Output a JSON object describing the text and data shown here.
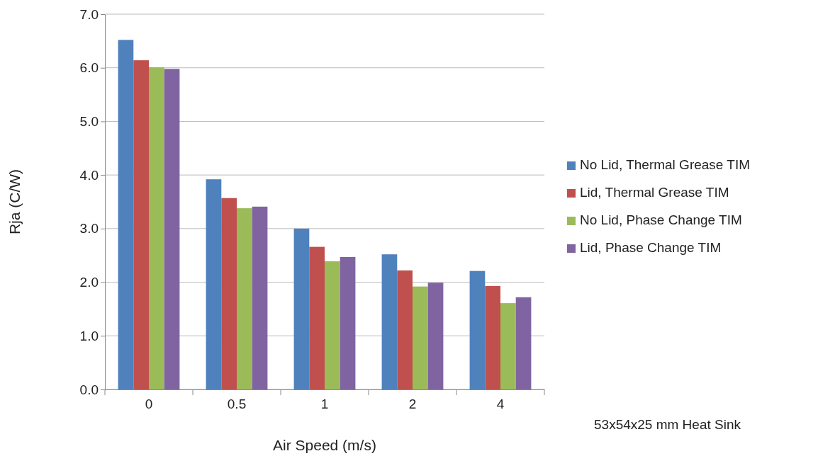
{
  "chart_data": {
    "type": "bar",
    "xlabel": "Air Speed (m/s)",
    "ylabel": "Rja (C/W)",
    "categories": [
      "0",
      "0.5",
      "1",
      "2",
      "4"
    ],
    "series": [
      {
        "name": "No Lid, Thermal Grease TIM",
        "color": "#4f81bd",
        "values": [
          6.52,
          3.92,
          3.0,
          2.52,
          2.21
        ]
      },
      {
        "name": "Lid, Thermal Grease TIM",
        "color": "#c0504d",
        "values": [
          6.14,
          3.57,
          2.66,
          2.22,
          1.93
        ]
      },
      {
        "name": "No Lid, Phase Change TIM",
        "color": "#9bbb59",
        "values": [
          6.01,
          3.38,
          2.39,
          1.92,
          1.61
        ]
      },
      {
        "name": "Lid, Phase Change TIM",
        "color": "#8064a2",
        "values": [
          5.98,
          3.41,
          2.47,
          1.99,
          1.72
        ]
      }
    ],
    "ylim": [
      0,
      7
    ],
    "yticks": [
      {
        "value": 0,
        "label": "0.0"
      },
      {
        "value": 1,
        "label": "1.0"
      },
      {
        "value": 2,
        "label": "2.0"
      },
      {
        "value": 3,
        "label": "3.0"
      },
      {
        "value": 4,
        "label": "4.0"
      },
      {
        "value": 5,
        "label": "5.0"
      },
      {
        "value": 6,
        "label": "6.0"
      },
      {
        "value": 7,
        "label": "7.0"
      }
    ],
    "grid": "y",
    "legend": "right",
    "annotations": [
      "53x54x25 mm Heat Sink"
    ]
  }
}
